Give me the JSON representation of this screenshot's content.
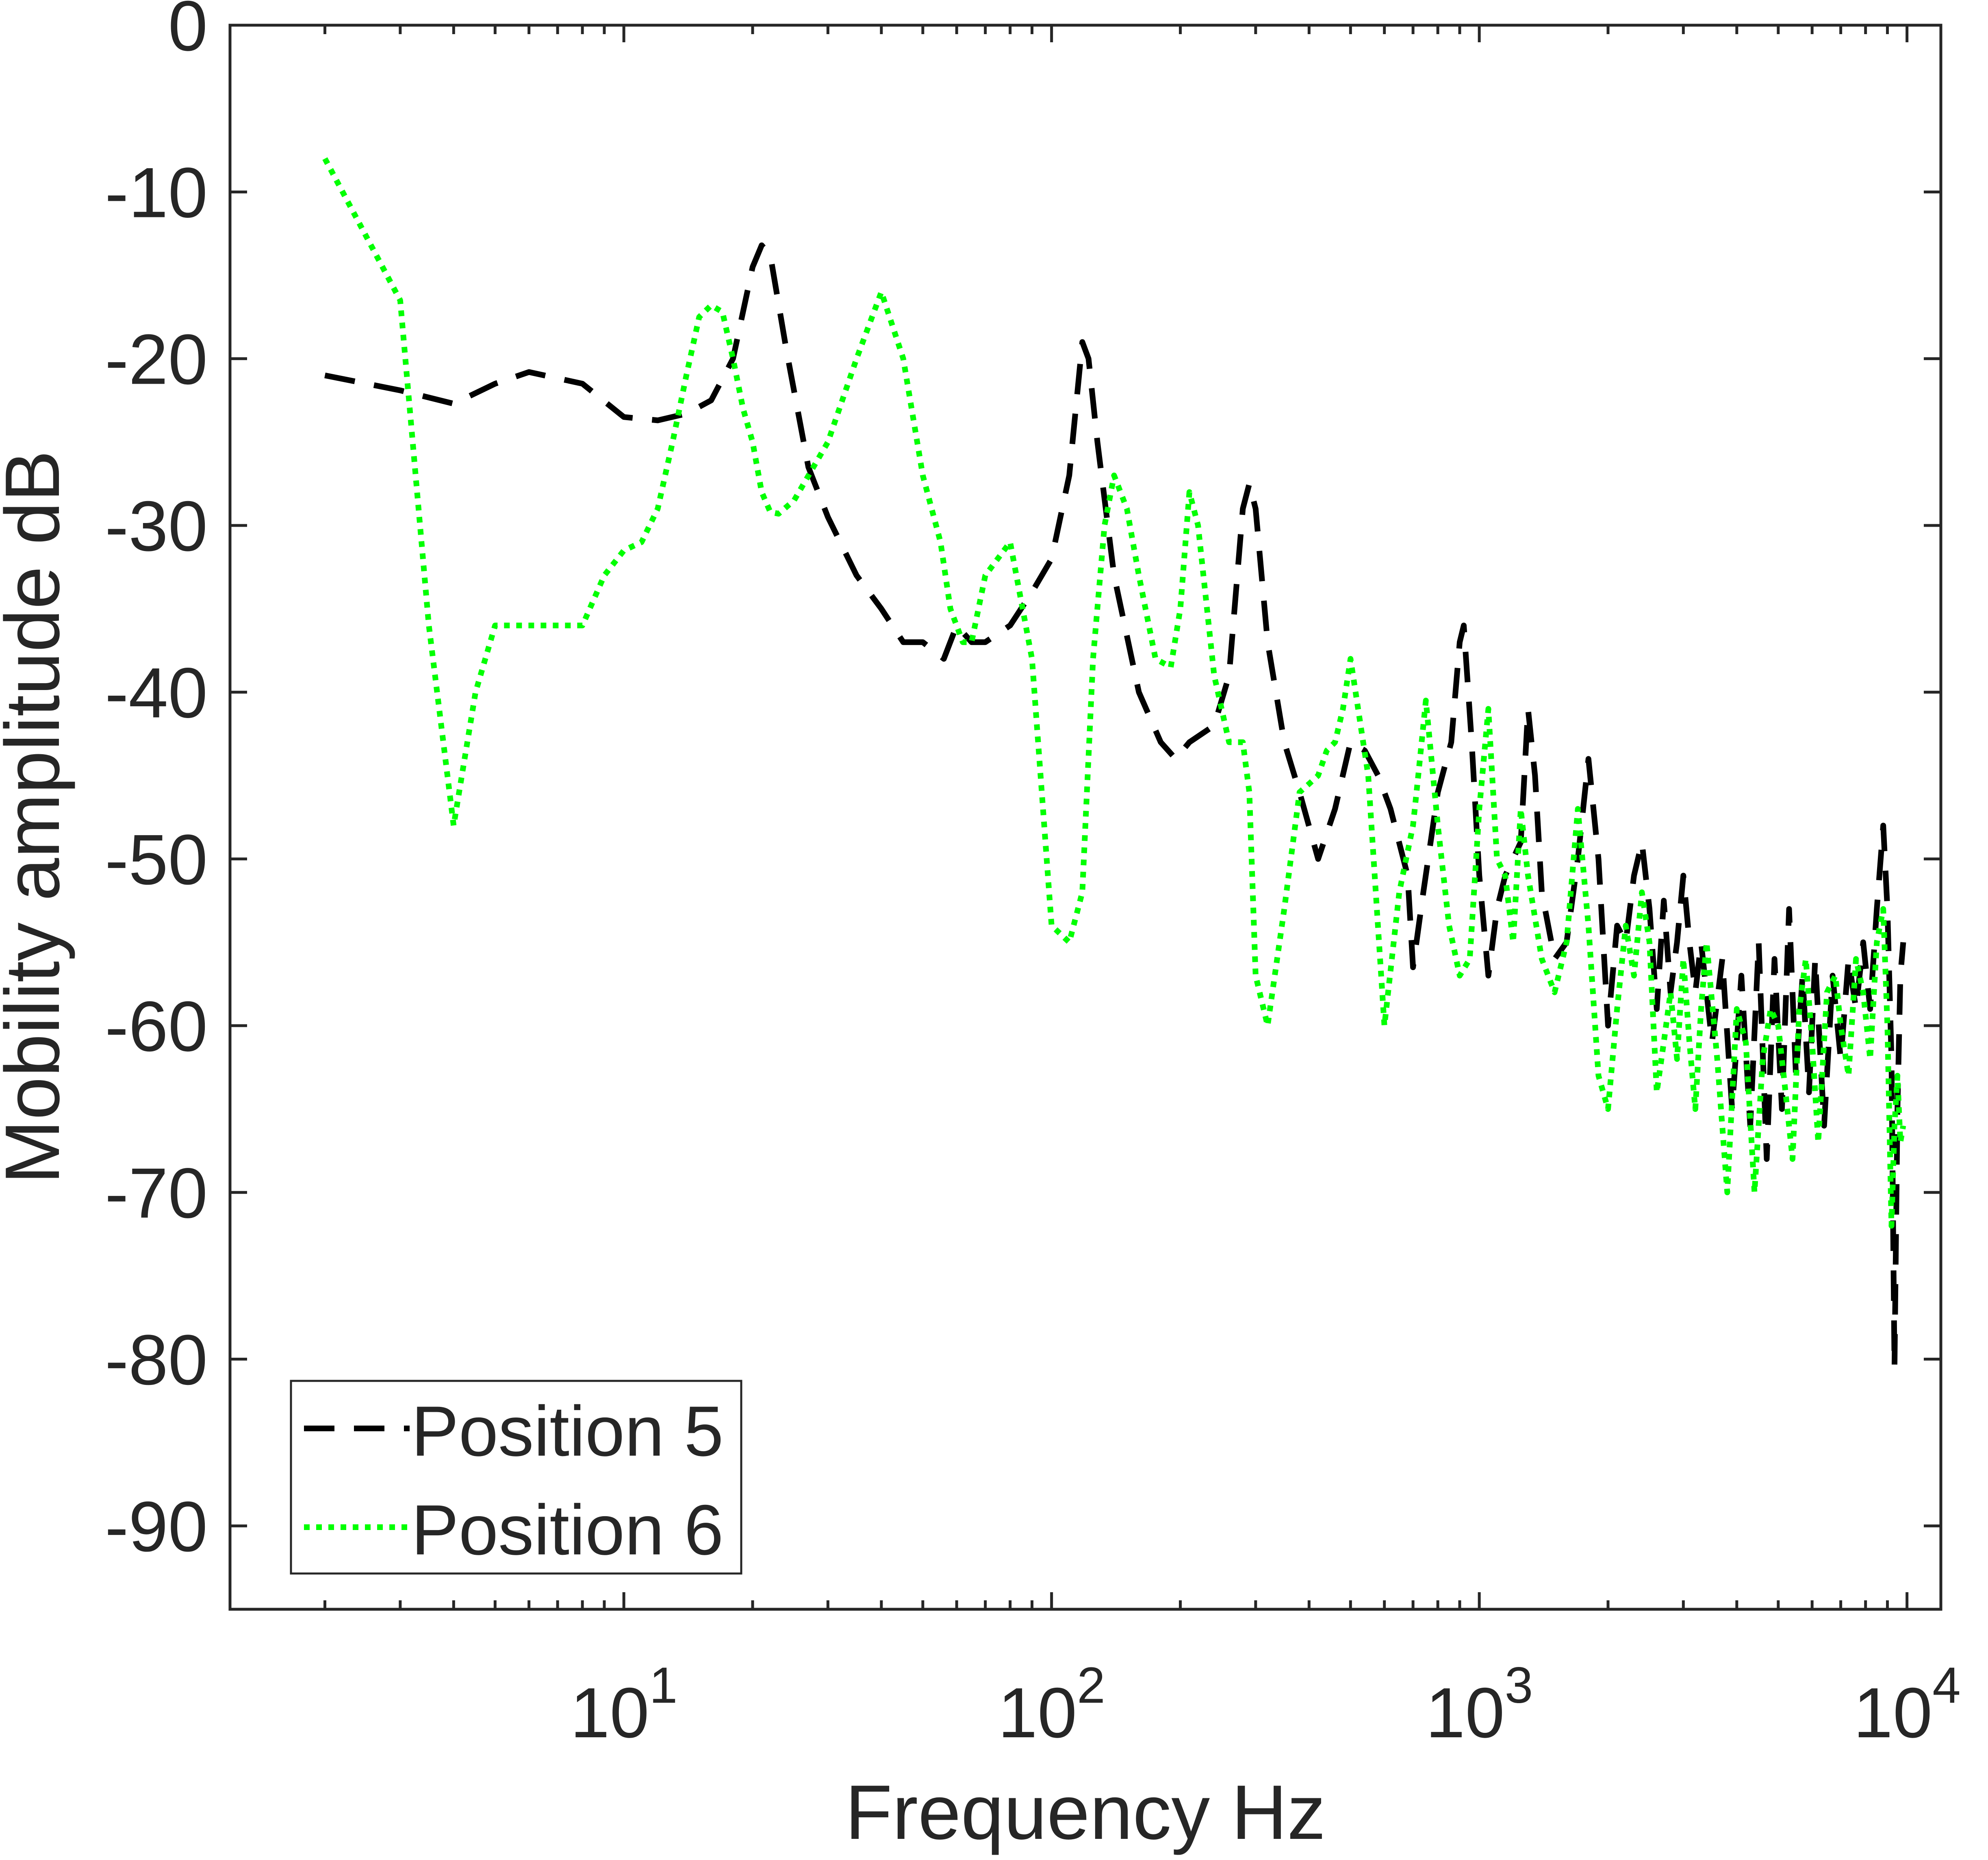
{
  "chart_data": {
    "type": "line",
    "title": "",
    "xlabel": "Frequency Hz",
    "ylabel": "Mobility amplitude dB",
    "xscale": "log",
    "xlim": [
      1.2,
      12000
    ],
    "ylim": [
      -95,
      0
    ],
    "xticks": [
      10,
      100,
      1000,
      10000
    ],
    "xtick_labels": [
      {
        "base": "10",
        "exp": "1"
      },
      {
        "base": "10",
        "exp": "2"
      },
      {
        "base": "10",
        "exp": "3"
      },
      {
        "base": "10",
        "exp": "4"
      }
    ],
    "yticks": [
      0,
      -10,
      -20,
      -30,
      -40,
      -50,
      -60,
      -70,
      -80,
      -90
    ],
    "ytick_labels": [
      "0",
      "-10",
      "-20",
      "-30",
      "-40",
      "-50",
      "-60",
      "-70",
      "-80",
      "-90"
    ],
    "grid": false,
    "legend_position": "bottom-left",
    "series": [
      {
        "name": "Position 5",
        "color": "#000000",
        "style": "dashed",
        "x": [
          2,
          3,
          4,
          5,
          6,
          8,
          10,
          12,
          14,
          16,
          18,
          20,
          21,
          22,
          24,
          27,
          30,
          35,
          40,
          45,
          50,
          56,
          60,
          65,
          70,
          80,
          90,
          100,
          110,
          118,
          122,
          128,
          140,
          160,
          180,
          195,
          210,
          240,
          260,
          280,
          290,
          300,
          320,
          350,
          380,
          420,
          460,
          500,
          540,
          580,
          620,
          680,
          700,
          740,
          800,
          860,
          900,
          920,
          960,
          1000,
          1050,
          1100,
          1150,
          1250,
          1300,
          1350,
          1400,
          1500,
          1600,
          1700,
          1800,
          1900,
          2000,
          2100,
          2200,
          2300,
          2400,
          2500,
          2600,
          2700,
          2800,
          2900,
          3000,
          3100,
          3200,
          3300,
          3500,
          3700,
          3900,
          4100,
          4300,
          4500,
          4700,
          4900,
          5100,
          5300,
          5500,
          5700,
          5900,
          6100,
          6400,
          6700,
          7000,
          7300,
          7600,
          7900,
          8200,
          8500,
          8800,
          9000,
          9200,
          9350,
          9500,
          9650,
          9800
        ],
        "y": [
          -21,
          -21.9,
          -22.7,
          -21.5,
          -20.8,
          -21.5,
          -23.5,
          -23.7,
          -23.3,
          -22.5,
          -20,
          -14.5,
          -13.2,
          -13.8,
          -19.5,
          -26.5,
          -29.5,
          -33,
          -35,
          -37,
          -37,
          -38,
          -36,
          -37,
          -37,
          -36,
          -34,
          -32,
          -27,
          -19,
          -20,
          -25,
          -33,
          -40,
          -43,
          -44,
          -43,
          -42,
          -39,
          -29,
          -27.5,
          -29,
          -37,
          -43,
          -46,
          -50,
          -47,
          -43,
          -43.5,
          -45,
          -47,
          -51,
          -56.5,
          -52,
          -46,
          -43,
          -37,
          -36,
          -43,
          -51,
          -57,
          -53,
          -51,
          -49,
          -41,
          -45,
          -52,
          -56,
          -55,
          -50,
          -44,
          -50,
          -60,
          -54,
          -55,
          -51,
          -49,
          -53,
          -59,
          -52.5,
          -58,
          -55,
          -51,
          -55,
          -58,
          -55,
          -61,
          -56,
          -65,
          -57,
          -66,
          -55,
          -68,
          -56,
          -65,
          -53,
          -63,
          -57,
          -64,
          -56,
          -66,
          -57,
          -62,
          -56,
          -59,
          -55,
          -59,
          -53,
          -48,
          -53,
          -62,
          -80.5,
          -65,
          -57,
          -55
        ]
      },
      {
        "name": "Position 6",
        "color": "#00ff00",
        "style": "dotted",
        "x": [
          2,
          3,
          3.5,
          4,
          4.5,
          5,
          6,
          7,
          8,
          9,
          10,
          11,
          12,
          13,
          14,
          15,
          16,
          17,
          18,
          19,
          20,
          21,
          22,
          23,
          25,
          30,
          35,
          40,
          45,
          50,
          55,
          58,
          62,
          65,
          70,
          80,
          90,
          100,
          110,
          118,
          125,
          133,
          140,
          150,
          160,
          175,
          190,
          200,
          210,
          220,
          240,
          260,
          280,
          290,
          300,
          320,
          350,
          380,
          400,
          420,
          440,
          460,
          480,
          500,
          550,
          600,
          650,
          700,
          720,
          750,
          800,
          850,
          900,
          950,
          1000,
          1050,
          1100,
          1150,
          1200,
          1250,
          1300,
          1400,
          1500,
          1600,
          1700,
          1800,
          1900,
          2000,
          2100,
          2200,
          2300,
          2400,
          2500,
          2600,
          2700,
          2800,
          2900,
          3000,
          3100,
          3200,
          3300,
          3400,
          3600,
          3800,
          4000,
          4200,
          4400,
          4600,
          4800,
          5000,
          5200,
          5400,
          5600,
          5800,
          6000,
          6200,
          6500,
          6800,
          7000,
          7300,
          7600,
          7900,
          8200,
          8500,
          8800,
          9000,
          9200,
          9350,
          9500,
          9650,
          9800
        ],
        "y": [
          -8,
          -16.5,
          -36,
          -48,
          -40,
          -36,
          -36,
          -36,
          -36,
          -33,
          -31.5,
          -31,
          -29,
          -25,
          -21,
          -17.5,
          -16.8,
          -17.2,
          -20,
          -23,
          -25,
          -28,
          -29.2,
          -29.3,
          -28.5,
          -25,
          -20,
          -16,
          -20,
          -27,
          -31,
          -35,
          -37,
          -37,
          -33,
          -31,
          -38,
          -54,
          -55,
          -52,
          -38,
          -30,
          -27,
          -29,
          -33,
          -38,
          -38.5,
          -35,
          -28,
          -30,
          -39,
          -43,
          -43,
          -46,
          -57,
          -60,
          -53,
          -46,
          -45.5,
          -45,
          -43.5,
          -43,
          -41,
          -38,
          -45,
          -60,
          -52,
          -48,
          -45,
          -40.5,
          -48,
          -54,
          -57,
          -56,
          -47,
          -41,
          -50,
          -51,
          -55,
          -47,
          -51,
          -56,
          -58,
          -55,
          -47,
          -54,
          -63,
          -65,
          -59,
          -54,
          -57,
          -52,
          -55,
          -64,
          -61,
          -58,
          -62,
          -56,
          -61,
          -65,
          -59,
          -55,
          -62,
          -70,
          -59,
          -61,
          -70,
          -62,
          -59,
          -60,
          -64,
          -68,
          -59,
          -56,
          -61,
          -67,
          -58,
          -57,
          -60,
          -63,
          -56,
          -58,
          -62,
          -55,
          -53,
          -60,
          -72,
          -66,
          -63,
          -67,
          -66
        ]
      }
    ]
  }
}
